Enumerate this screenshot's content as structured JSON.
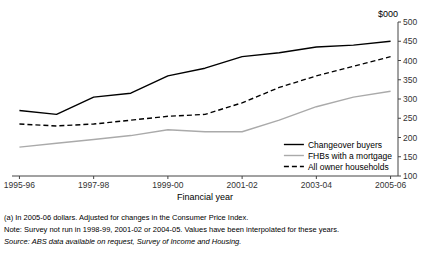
{
  "chart_data": {
    "type": "line",
    "x_label": "Financial year",
    "y_label": "$000",
    "categories": [
      "1995-96",
      null,
      "1997-98",
      null,
      "1999-00",
      null,
      "2001-02",
      null,
      "2003-04",
      null,
      "2005-06"
    ],
    "series": [
      {
        "name": "Changeover buyers",
        "color": "#000000",
        "line_style": "solid",
        "values": [
          270,
          260,
          305,
          315,
          360,
          380,
          410,
          420,
          435,
          440,
          450
        ]
      },
      {
        "name": "FHBs with a mortgage",
        "color": "#aaaaaa",
        "line_style": "solid",
        "values": [
          175,
          185,
          195,
          205,
          220,
          215,
          215,
          245,
          280,
          305,
          320
        ]
      },
      {
        "name": "All owner households",
        "color": "#000000",
        "line_style": "dashed",
        "values": [
          235,
          230,
          235,
          245,
          255,
          260,
          290,
          330,
          360,
          385,
          410
        ]
      }
    ],
    "ylim": [
      100,
      500
    ],
    "yticks": [
      100,
      150,
      200,
      250,
      300,
      350,
      400,
      450,
      500
    ],
    "grid": false,
    "legend": "lower right",
    "footnotes": [
      "(a) In 2005-06 dollars. Adjusted for changes in the Consumer Price Index.",
      "Note: Survey not run in 1998-99, 2001-02 or 2004-05. Values have been interpolated for these years.",
      "Source: ABS data available on request, Survey of Income and Housing."
    ]
  }
}
